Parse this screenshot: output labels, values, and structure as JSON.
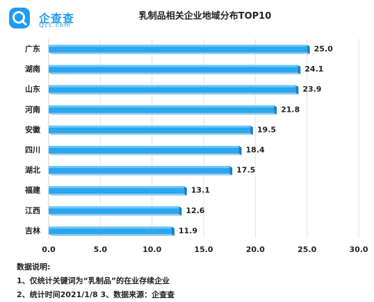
{
  "brand": {
    "name": "企查查",
    "domain": "Qcc.com",
    "color": "#1e9bf0"
  },
  "chart_data": {
    "type": "bar",
    "orientation": "horizontal",
    "title": "乳制品相关企业地域分布TOP10",
    "categories": [
      "广东",
      "湖南",
      "山东",
      "河南",
      "安徽",
      "四川",
      "湖北",
      "福建",
      "江西",
      "吉林"
    ],
    "values": [
      25.0,
      24.1,
      23.9,
      21.8,
      19.5,
      18.4,
      17.5,
      13.1,
      12.6,
      11.9
    ],
    "value_labels": [
      "25.0",
      "24.1",
      "23.9",
      "21.8",
      "19.5",
      "18.4",
      "17.5",
      "13.1",
      "12.6",
      "11.9"
    ],
    "xlim": [
      0,
      30
    ],
    "xticks": [
      "0.0",
      "5.0",
      "10.0",
      "15.0",
      "20.0",
      "25.0",
      "30.0"
    ],
    "xlabel": "",
    "ylabel": "",
    "grid": "vertical",
    "bar_color": "#2aa6ee"
  },
  "notes": {
    "heading": "数据说明:",
    "line1": "1、仅统计关键词为“乳制品”的在业存续企业",
    "line2": "2、统计时间2021/1/8   3、数据来源：企查查"
  }
}
